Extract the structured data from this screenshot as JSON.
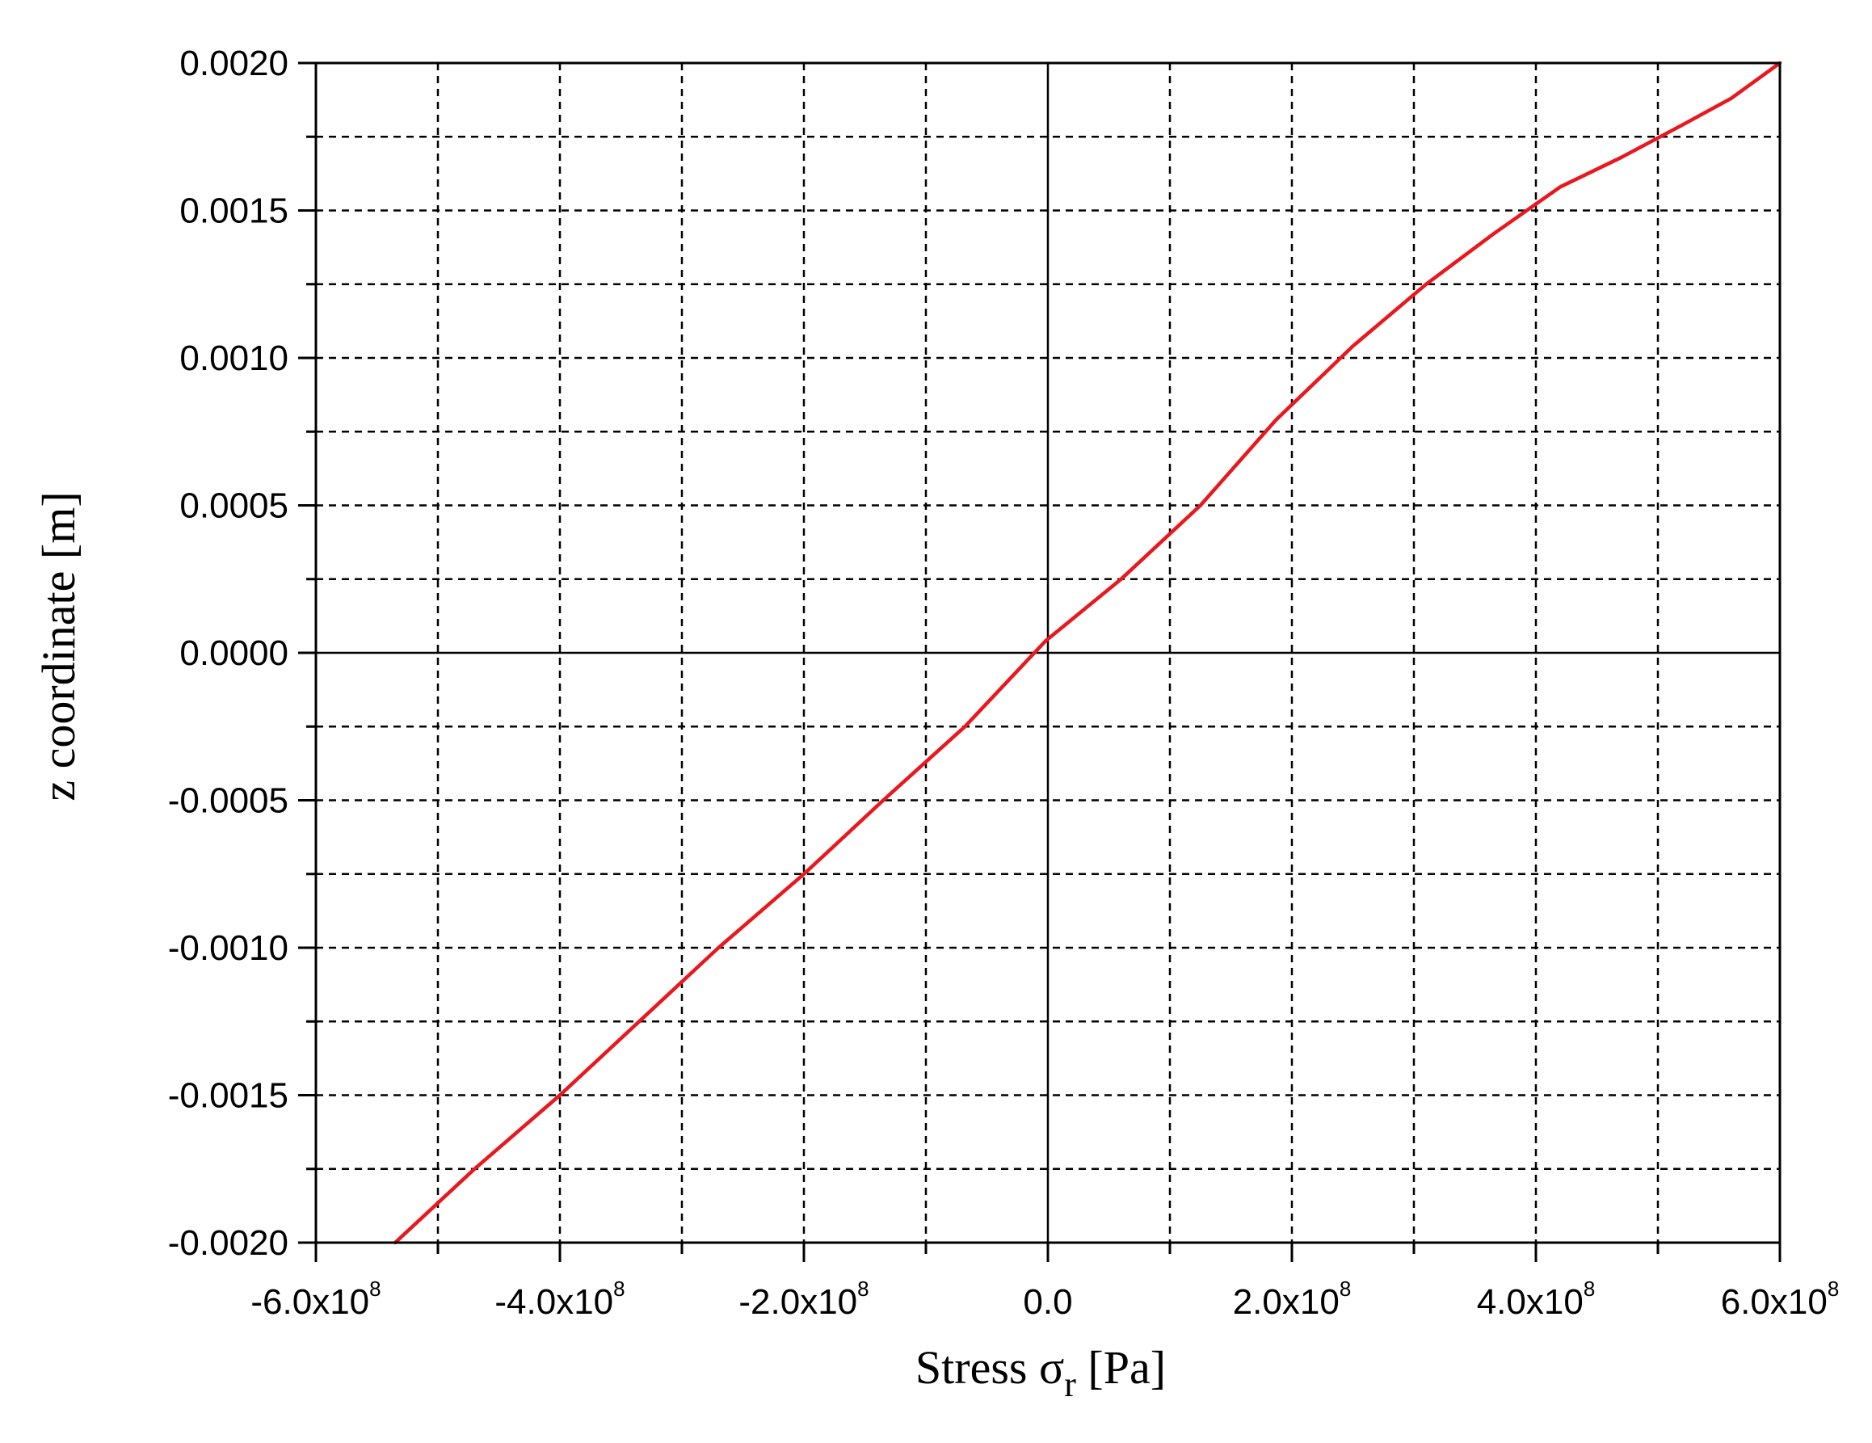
{
  "chart_data": {
    "type": "line",
    "xlabel_main": "Stress σ",
    "xlabel_sub": "r",
    "xlabel_unit": " [Pa]",
    "ylabel": "z coordinate [m]",
    "xlim": [
      -600000000,
      600000000
    ],
    "ylim": [
      -0.002,
      0.002
    ],
    "grid": true,
    "x_ticks": [
      {
        "value": -600000000,
        "mantissa": "-6.0x10",
        "exp": "8"
      },
      {
        "value": -400000000,
        "mantissa": "-4.0x10",
        "exp": "8"
      },
      {
        "value": -200000000,
        "mantissa": "-2.0x10",
        "exp": "8"
      },
      {
        "value": 0,
        "mantissa": "0.0",
        "exp": ""
      },
      {
        "value": 200000000,
        "mantissa": "2.0x10",
        "exp": "8"
      },
      {
        "value": 400000000,
        "mantissa": "4.0x10",
        "exp": "8"
      },
      {
        "value": 600000000,
        "mantissa": "6.0x10",
        "exp": "8"
      }
    ],
    "x_minor_ticks": [
      -500000000,
      -300000000,
      -100000000,
      100000000,
      300000000,
      500000000
    ],
    "y_ticks": [
      {
        "value": 0.002,
        "label": "0.0020"
      },
      {
        "value": 0.0015,
        "label": "0.0015"
      },
      {
        "value": 0.001,
        "label": "0.0010"
      },
      {
        "value": 0.0005,
        "label": "0.0005"
      },
      {
        "value": 0.0,
        "label": "0.0000"
      },
      {
        "value": -0.0005,
        "label": "-0.0005"
      },
      {
        "value": -0.001,
        "label": "-0.0010"
      },
      {
        "value": -0.0015,
        "label": "-0.0015"
      },
      {
        "value": -0.002,
        "label": "-0.0020"
      }
    ],
    "y_minor_ticks": [
      0.00175,
      0.00125,
      0.00075,
      0.00025,
      -0.00025,
      -0.00075,
      -0.00125,
      -0.00175
    ],
    "series": [
      {
        "color": "#e8181e",
        "points": [
          [
            -535000000,
            -0.002
          ],
          [
            -470000000,
            -0.00175
          ],
          [
            -400000000,
            -0.0015
          ],
          [
            -335000000,
            -0.00125
          ],
          [
            -270000000,
            -0.001
          ],
          [
            -200000000,
            -0.00075
          ],
          [
            -135000000,
            -0.0005
          ],
          [
            -68000000,
            -0.00025
          ],
          [
            -2000000,
            4e-05
          ],
          [
            60000000,
            0.00025
          ],
          [
            125000000,
            0.0005
          ],
          [
            187000000,
            0.00079
          ],
          [
            250000000,
            0.00104
          ],
          [
            310000000,
            0.00125
          ],
          [
            365000000,
            0.00142
          ],
          [
            420000000,
            0.00158
          ],
          [
            470000000,
            0.00168
          ],
          [
            520000000,
            0.00179
          ],
          [
            560000000,
            0.00188
          ],
          [
            600000000,
            0.002
          ]
        ]
      }
    ]
  }
}
